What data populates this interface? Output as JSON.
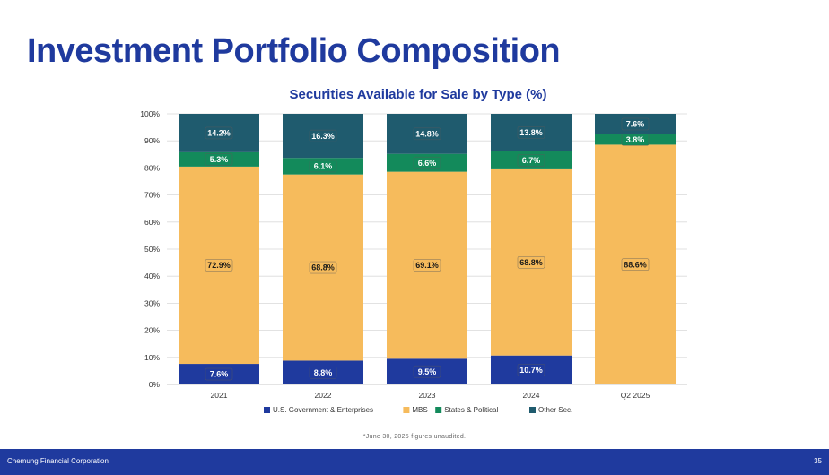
{
  "page": {
    "title": "Investment Portfolio Composition",
    "footnote": "*June 30, 2025 figures unaudited.",
    "footer_company": "Chemung Financial Corporation",
    "page_number": "35"
  },
  "colors": {
    "title": "#1f3a9e",
    "footer": "#1f3a9e",
    "chart_title": "#1f3a9e"
  },
  "chart_data": {
    "type": "bar",
    "stacked": true,
    "title": "Securities Available for Sale by Type (%)",
    "xlabel": "",
    "ylabel": "",
    "ylim": [
      0,
      100
    ],
    "yticks": [
      0,
      10,
      20,
      30,
      40,
      50,
      60,
      70,
      80,
      90,
      100
    ],
    "ytick_labels": [
      "0%",
      "10%",
      "20%",
      "30%",
      "40%",
      "50%",
      "60%",
      "70%",
      "80%",
      "90%",
      "100%"
    ],
    "grid": true,
    "legend_position": "bottom",
    "categories": [
      "2021",
      "2022",
      "2023",
      "2024",
      "Q2 2025"
    ],
    "series": [
      {
        "name": "U.S. Government & Enterprises",
        "color": "#1f3a9e",
        "values": [
          7.6,
          8.8,
          9.5,
          10.7,
          0
        ],
        "labels": [
          "7.6%",
          "8.8%",
          "9.5%",
          "10.7%",
          ""
        ]
      },
      {
        "name": "MBS",
        "color": "#f6bb5c",
        "values": [
          72.9,
          68.8,
          69.1,
          68.8,
          88.6
        ],
        "labels": [
          "72.9%",
          "68.8%",
          "69.1%",
          "68.8%",
          "88.6%"
        ]
      },
      {
        "name": "States & Political",
        "color": "#138a5b",
        "values": [
          5.3,
          6.1,
          6.6,
          6.7,
          3.8
        ],
        "labels": [
          "5.3%",
          "6.1%",
          "6.6%",
          "6.7%",
          "3.8%"
        ]
      },
      {
        "name": "Other Sec.",
        "color": "#1f5b6e",
        "values": [
          14.2,
          16.3,
          14.8,
          13.8,
          7.6
        ],
        "labels": [
          "14.2%",
          "16.3%",
          "14.8%",
          "13.8%",
          "7.6%"
        ]
      }
    ]
  }
}
